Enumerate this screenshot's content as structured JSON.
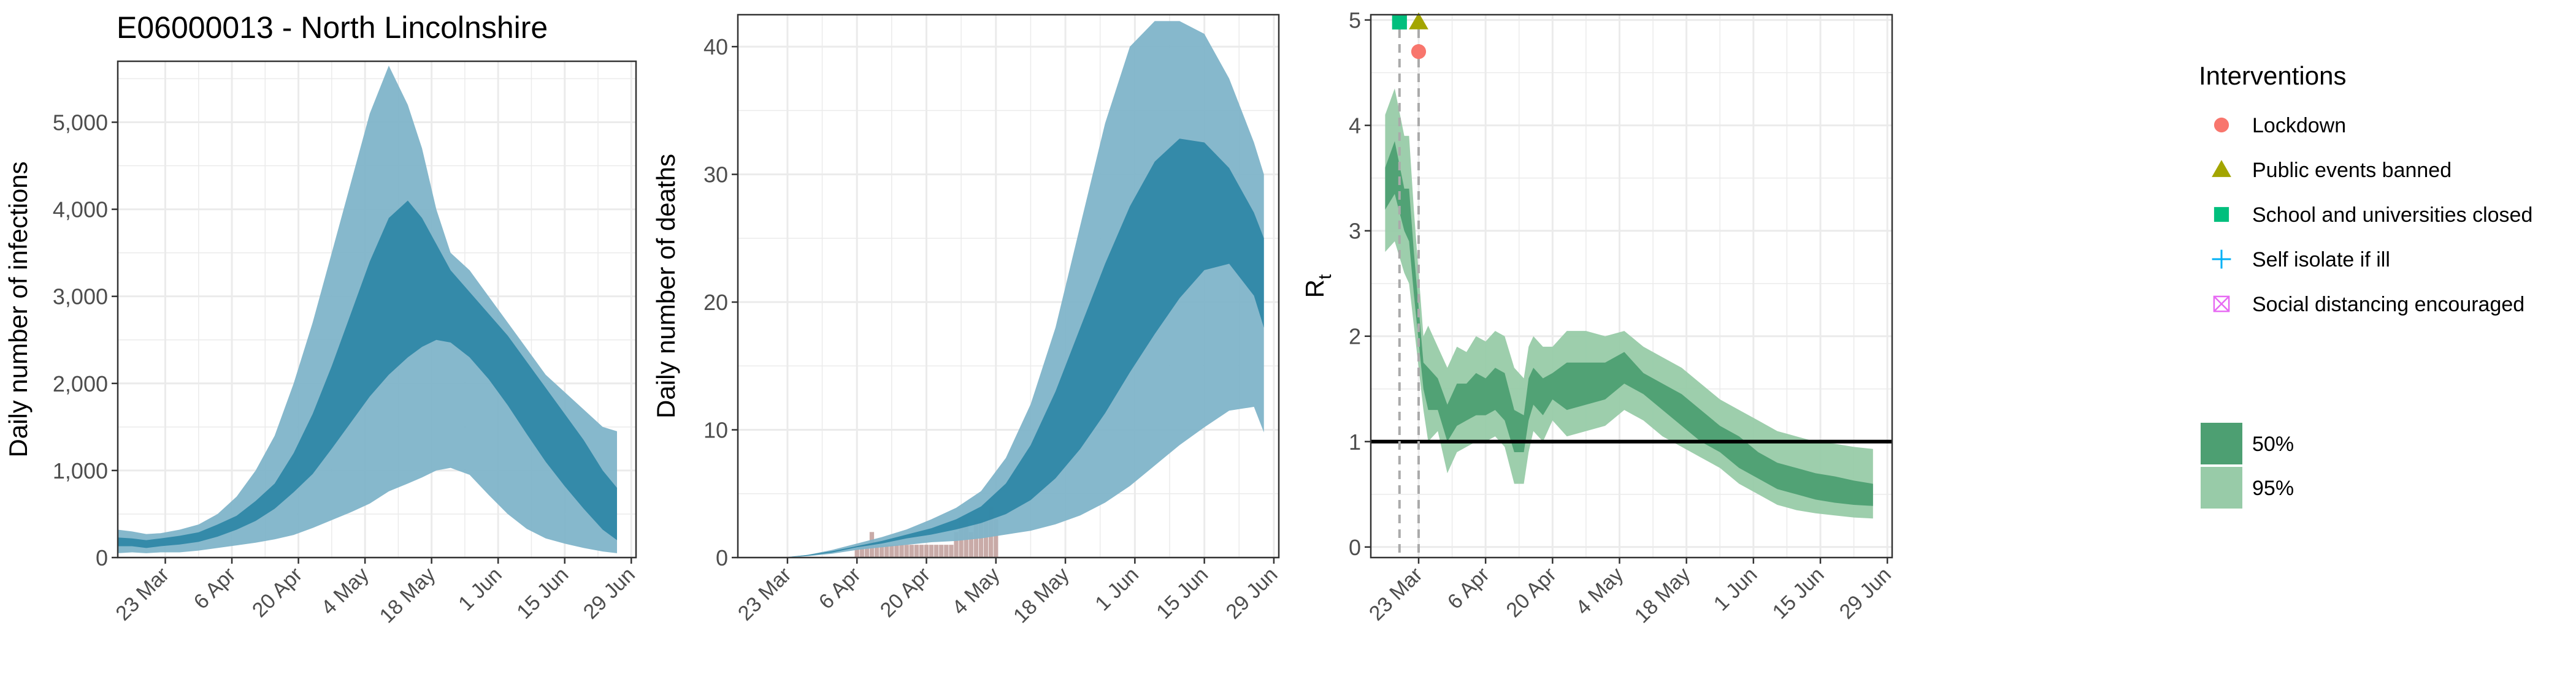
{
  "figure_title": "E06000013 - North Lincolnshire",
  "colors": {
    "blue_band_95": "#7fb4c9",
    "blue_band_50": "#2f87a6",
    "green_band_95": "#98cba8",
    "green_band_50": "#4d9f72",
    "death_bars": "#c3a29e",
    "grid": "#ebebeb",
    "lockdown": "#f8766d",
    "public_events": "#a3a500",
    "school": "#00bf7d",
    "self_isolate": "#00b0f6",
    "social_distancing": "#e76bf3"
  },
  "chart_data": [
    {
      "type": "area",
      "ylabel": "Daily number of infections",
      "ylim": [
        0,
        5700
      ],
      "xlim": [
        "2020-03-13",
        "2020-06-30"
      ],
      "x_ticks": [
        "23 Mar",
        "6 Apr",
        "20 Apr",
        "4 May",
        "18 May",
        "1 Jun",
        "15 Jun",
        "29 Jun"
      ],
      "y_ticks": [
        "0",
        "1,000",
        "2,000",
        "3,000",
        "4,000",
        "5,000"
      ],
      "grid": true,
      "series": [
        {
          "band": "95%",
          "x": [
            "2020-03-13",
            "2020-03-16",
            "2020-03-19",
            "2020-03-22",
            "2020-03-26",
            "2020-03-30",
            "2020-04-03",
            "2020-04-07",
            "2020-04-11",
            "2020-04-15",
            "2020-04-19",
            "2020-04-23",
            "2020-04-27",
            "2020-05-01",
            "2020-05-05",
            "2020-05-09",
            "2020-05-13",
            "2020-05-16",
            "2020-05-19",
            "2020-05-22",
            "2020-05-26",
            "2020-05-30",
            "2020-06-03",
            "2020-06-07",
            "2020-06-11",
            "2020-06-15",
            "2020-06-19",
            "2020-06-23",
            "2020-06-26"
          ],
          "lower": [
            50,
            60,
            50,
            60,
            60,
            80,
            110,
            140,
            170,
            210,
            260,
            340,
            430,
            520,
            620,
            760,
            850,
            920,
            1000,
            1030,
            950,
            720,
            500,
            330,
            220,
            160,
            110,
            70,
            50
          ],
          "upper": [
            320,
            300,
            270,
            280,
            320,
            380,
            500,
            700,
            1000,
            1400,
            2000,
            2700,
            3500,
            4300,
            5100,
            5650,
            5200,
            4700,
            4000,
            3500,
            3300,
            3000,
            2700,
            2400,
            2100,
            1900,
            1700,
            1500,
            1450
          ]
        },
        {
          "band": "50%",
          "x": [
            "2020-03-13",
            "2020-03-16",
            "2020-03-19",
            "2020-03-22",
            "2020-03-26",
            "2020-03-30",
            "2020-04-03",
            "2020-04-07",
            "2020-04-11",
            "2020-04-15",
            "2020-04-19",
            "2020-04-23",
            "2020-04-27",
            "2020-05-01",
            "2020-05-05",
            "2020-05-09",
            "2020-05-13",
            "2020-05-16",
            "2020-05-19",
            "2020-05-22",
            "2020-05-26",
            "2020-05-30",
            "2020-06-03",
            "2020-06-07",
            "2020-06-11",
            "2020-06-15",
            "2020-06-19",
            "2020-06-23",
            "2020-06-26"
          ],
          "lower": [
            130,
            130,
            110,
            130,
            150,
            180,
            240,
            320,
            420,
            560,
            750,
            960,
            1250,
            1550,
            1850,
            2100,
            2300,
            2420,
            2500,
            2470,
            2300,
            2050,
            1750,
            1420,
            1100,
            820,
            560,
            320,
            200
          ],
          "upper": [
            230,
            220,
            200,
            220,
            250,
            290,
            380,
            480,
            650,
            850,
            1200,
            1650,
            2200,
            2800,
            3400,
            3900,
            4100,
            3900,
            3600,
            3300,
            3050,
            2800,
            2550,
            2250,
            1950,
            1650,
            1350,
            1000,
            800
          ]
        }
      ]
    },
    {
      "type": "area",
      "ylabel": "Daily number of deaths",
      "ylim": [
        0,
        42.5
      ],
      "xlim": [
        "2020-03-13",
        "2020-06-30"
      ],
      "x_ticks": [
        "23 Mar",
        "6 Apr",
        "20 Apr",
        "4 May",
        "18 May",
        "1 Jun",
        "15 Jun",
        "29 Jun"
      ],
      "y_ticks": [
        "0",
        "10",
        "20",
        "30",
        "40"
      ],
      "grid": true,
      "series": [
        {
          "band": "95%",
          "x": [
            "2020-03-22",
            "2020-03-27",
            "2020-04-01",
            "2020-04-06",
            "2020-04-11",
            "2020-04-16",
            "2020-04-21",
            "2020-04-26",
            "2020-05-01",
            "2020-05-06",
            "2020-05-11",
            "2020-05-16",
            "2020-05-21",
            "2020-05-26",
            "2020-05-31",
            "2020-06-05",
            "2020-06-10",
            "2020-06-15",
            "2020-06-20",
            "2020-06-25",
            "2020-06-27"
          ],
          "lower": [
            0,
            0.1,
            0.3,
            0.6,
            0.8,
            1.0,
            1.2,
            1.3,
            1.5,
            1.8,
            2.1,
            2.6,
            3.3,
            4.3,
            5.6,
            7.2,
            8.8,
            10.2,
            11.5,
            11.8,
            9.8
          ],
          "upper": [
            0,
            0.2,
            0.6,
            1.1,
            1.6,
            2.2,
            3.0,
            3.9,
            5.2,
            7.8,
            12.0,
            18.0,
            26.0,
            34.0,
            40.0,
            42.0,
            42.0,
            41.0,
            37.5,
            32.5,
            30.0
          ]
        },
        {
          "band": "50%",
          "x": [
            "2020-03-22",
            "2020-03-27",
            "2020-04-01",
            "2020-04-06",
            "2020-04-11",
            "2020-04-16",
            "2020-04-21",
            "2020-04-26",
            "2020-05-01",
            "2020-05-06",
            "2020-05-11",
            "2020-05-16",
            "2020-05-21",
            "2020-05-26",
            "2020-05-31",
            "2020-06-05",
            "2020-06-10",
            "2020-06-15",
            "2020-06-20",
            "2020-06-25",
            "2020-06-27"
          ],
          "lower": [
            0,
            0.15,
            0.4,
            0.8,
            1.1,
            1.5,
            1.8,
            2.2,
            2.7,
            3.4,
            4.5,
            6.2,
            8.5,
            11.3,
            14.5,
            17.5,
            20.3,
            22.5,
            23.0,
            20.5,
            18.0
          ],
          "upper": [
            0,
            0.2,
            0.5,
            0.9,
            1.3,
            1.8,
            2.3,
            3.0,
            4.0,
            5.8,
            8.8,
            13.0,
            18.0,
            23.0,
            27.5,
            31.0,
            32.8,
            32.5,
            30.5,
            27.0,
            25.0
          ]
        }
      ],
      "bars": {
        "x": [
          "2020-04-06",
          "2020-04-07",
          "2020-04-08",
          "2020-04-09",
          "2020-04-10",
          "2020-04-11",
          "2020-04-12",
          "2020-04-13",
          "2020-04-14",
          "2020-04-15",
          "2020-04-16",
          "2020-04-17",
          "2020-04-18",
          "2020-04-19",
          "2020-04-20",
          "2020-04-21",
          "2020-04-22",
          "2020-04-23",
          "2020-04-24",
          "2020-04-25",
          "2020-04-26",
          "2020-04-27",
          "2020-04-28",
          "2020-04-29",
          "2020-04-30",
          "2020-05-01",
          "2020-05-02",
          "2020-05-03",
          "2020-05-04"
        ],
        "values": [
          1,
          1,
          1,
          2,
          1,
          1,
          1,
          1,
          1,
          1,
          1,
          1,
          1,
          1,
          1,
          1,
          1,
          1,
          1,
          1,
          2,
          3,
          3,
          2,
          3,
          3,
          3,
          4,
          3
        ]
      }
    },
    {
      "type": "area",
      "ylabel": "R",
      "ylabel_subscript": "t",
      "ylim": [
        -0.1,
        5.05
      ],
      "xlim": [
        "2020-03-13",
        "2020-06-30"
      ],
      "x_ticks": [
        "23 Mar",
        "6 Apr",
        "20 Apr",
        "4 May",
        "18 May",
        "1 Jun",
        "15 Jun",
        "29 Jun"
      ],
      "y_ticks": [
        "0",
        "1",
        "2",
        "3",
        "4",
        "5"
      ],
      "grid": true,
      "reference_line": 1,
      "intervention_dates": [
        "2020-03-19",
        "2020-03-23"
      ],
      "intervention_markers": [
        {
          "date": "2020-03-19",
          "y": 4.98,
          "shape": "square",
          "intervention": "School and universities closed"
        },
        {
          "date": "2020-03-23",
          "y": 4.98,
          "shape": "triangle",
          "intervention": "Public events banned"
        },
        {
          "date": "2020-03-23",
          "y": 4.7,
          "shape": "circle",
          "intervention": "Lockdown"
        }
      ],
      "series": [
        {
          "band": "95%",
          "x": [
            "2020-03-16",
            "2020-03-18",
            "2020-03-20",
            "2020-03-21",
            "2020-03-22",
            "2020-03-24",
            "2020-03-25",
            "2020-03-27",
            "2020-03-29",
            "2020-03-31",
            "2020-04-02",
            "2020-04-04",
            "2020-04-06",
            "2020-04-08",
            "2020-04-10",
            "2020-04-12",
            "2020-04-14",
            "2020-04-15",
            "2020-04-16",
            "2020-04-18",
            "2020-04-20",
            "2020-04-23",
            "2020-04-27",
            "2020-05-01",
            "2020-05-05",
            "2020-05-09",
            "2020-05-13",
            "2020-05-17",
            "2020-05-21",
            "2020-05-25",
            "2020-05-29",
            "2020-06-02",
            "2020-06-06",
            "2020-06-10",
            "2020-06-14",
            "2020-06-18",
            "2020-06-22",
            "2020-06-26"
          ],
          "lower": [
            2.8,
            2.9,
            2.6,
            2.5,
            2.1,
            1.3,
            1.0,
            1.1,
            0.7,
            0.9,
            0.95,
            1.0,
            1.0,
            1.05,
            0.95,
            0.6,
            0.6,
            0.9,
            1.1,
            1.0,
            1.2,
            1.05,
            1.1,
            1.15,
            1.3,
            1.2,
            1.05,
            0.95,
            0.85,
            0.75,
            0.6,
            0.5,
            0.4,
            0.35,
            0.32,
            0.3,
            0.28,
            0.27
          ],
          "upper": [
            4.1,
            4.35,
            3.9,
            3.9,
            3.2,
            2.0,
            2.1,
            1.9,
            1.7,
            1.9,
            1.85,
            2.0,
            1.95,
            2.05,
            2.0,
            1.7,
            1.6,
            1.9,
            2.0,
            1.9,
            1.9,
            2.05,
            2.05,
            2.0,
            2.05,
            1.9,
            1.8,
            1.7,
            1.55,
            1.4,
            1.3,
            1.2,
            1.1,
            1.05,
            1.0,
            0.98,
            0.95,
            0.93
          ]
        },
        {
          "band": "50%",
          "x": [
            "2020-03-16",
            "2020-03-18",
            "2020-03-20",
            "2020-03-21",
            "2020-03-22",
            "2020-03-24",
            "2020-03-25",
            "2020-03-27",
            "2020-03-29",
            "2020-03-31",
            "2020-04-02",
            "2020-04-04",
            "2020-04-06",
            "2020-04-08",
            "2020-04-10",
            "2020-04-12",
            "2020-04-14",
            "2020-04-15",
            "2020-04-16",
            "2020-04-18",
            "2020-04-20",
            "2020-04-23",
            "2020-04-27",
            "2020-05-01",
            "2020-05-05",
            "2020-05-09",
            "2020-05-13",
            "2020-05-17",
            "2020-05-21",
            "2020-05-25",
            "2020-05-29",
            "2020-06-02",
            "2020-06-06",
            "2020-06-10",
            "2020-06-14",
            "2020-06-18",
            "2020-06-22",
            "2020-06-26"
          ],
          "lower": [
            3.2,
            3.35,
            3.0,
            2.9,
            2.4,
            1.5,
            1.3,
            1.3,
            1.0,
            1.15,
            1.2,
            1.25,
            1.25,
            1.3,
            1.2,
            0.9,
            0.9,
            1.2,
            1.35,
            1.25,
            1.4,
            1.3,
            1.35,
            1.4,
            1.55,
            1.45,
            1.3,
            1.15,
            1.0,
            0.9,
            0.75,
            0.65,
            0.55,
            0.5,
            0.45,
            0.42,
            0.4,
            0.39
          ],
          "upper": [
            3.6,
            3.85,
            3.4,
            3.4,
            2.8,
            1.75,
            1.7,
            1.6,
            1.35,
            1.55,
            1.55,
            1.65,
            1.6,
            1.7,
            1.65,
            1.3,
            1.25,
            1.6,
            1.7,
            1.6,
            1.65,
            1.75,
            1.75,
            1.75,
            1.85,
            1.65,
            1.55,
            1.45,
            1.3,
            1.15,
            1.05,
            0.9,
            0.8,
            0.75,
            0.7,
            0.67,
            0.63,
            0.6
          ]
        }
      ]
    }
  ],
  "legend": {
    "interventions_title": "Interventions",
    "items": [
      {
        "label": "Lockdown",
        "shape": "circle",
        "color": "#f8766d"
      },
      {
        "label": "Public events banned",
        "shape": "triangle",
        "color": "#a3a500"
      },
      {
        "label": "School and universities closed",
        "shape": "square",
        "color": "#00bf7d"
      },
      {
        "label": "Self isolate if ill",
        "shape": "plus",
        "color": "#00b0f6"
      },
      {
        "label": "Social distancing encouraged",
        "shape": "boxcross",
        "color": "#e76bf3"
      }
    ],
    "bands": [
      {
        "label": "50%",
        "color": "#4d9f72"
      },
      {
        "label": "95%",
        "color": "#98cba8"
      }
    ]
  }
}
